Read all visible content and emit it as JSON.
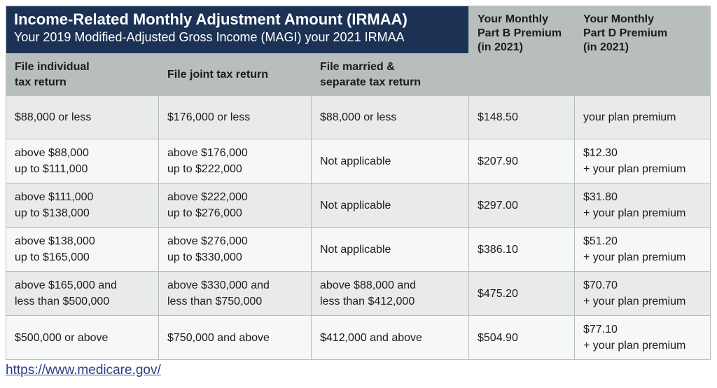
{
  "header": {
    "title": "Income-Related Monthly Adjustment Amount (IRMAA)",
    "subtitle": "Your 2019 Modified-Adjusted Gross Income (MAGI) your 2021 IRMAA",
    "part_b": "Your Monthly\nPart B Premium\n(in 2021)",
    "part_d": "Your Monthly\nPart D Premium\n(in 2021)",
    "col_individual": "File individual\ntax return",
    "col_joint": "File joint tax return",
    "col_separate": "File married &\nseparate tax return"
  },
  "rows": [
    {
      "individual": "$88,000 or less",
      "joint": "$176,000 or less",
      "separate": "$88,000 or less",
      "part_b": "$148.50",
      "part_d": "your plan premium"
    },
    {
      "individual": "above $88,000\nup to $111,000",
      "joint": "above $176,000\nup to $222,000",
      "separate": "Not applicable",
      "part_b": "$207.90",
      "part_d": "$12.30\n+ your plan premium"
    },
    {
      "individual": "above $111,000\nup to $138,000",
      "joint": "above $222,000\nup to $276,000",
      "separate": "Not applicable",
      "part_b": "$297.00",
      "part_d": "$31.80\n+ your plan premium"
    },
    {
      "individual": "above $138,000\nup to $165,000",
      "joint": "above $276,000\nup to $330,000",
      "separate": "Not applicable",
      "part_b": "$386.10",
      "part_d": "$51.20\n+ your plan premium"
    },
    {
      "individual": "above $165,000 and\nless than $500,000",
      "joint": "above $330,000 and\nless than $750,000",
      "separate": "above $88,000 and\nless than $412,000",
      "part_b": "$475.20",
      "part_d": "$70.70\n+ your plan premium"
    },
    {
      "individual": "$500,000 or above",
      "joint": "$750,000 and above",
      "separate": "$412,000 and above",
      "part_b": "$504.90",
      "part_d": "$77.10\n+ your plan premium"
    }
  ],
  "source_link": "https://www.medicare.gov/",
  "colors": {
    "header_navy": "#1b3255",
    "header_gray": "#b8bdbd",
    "link": "#2c3c8c"
  }
}
